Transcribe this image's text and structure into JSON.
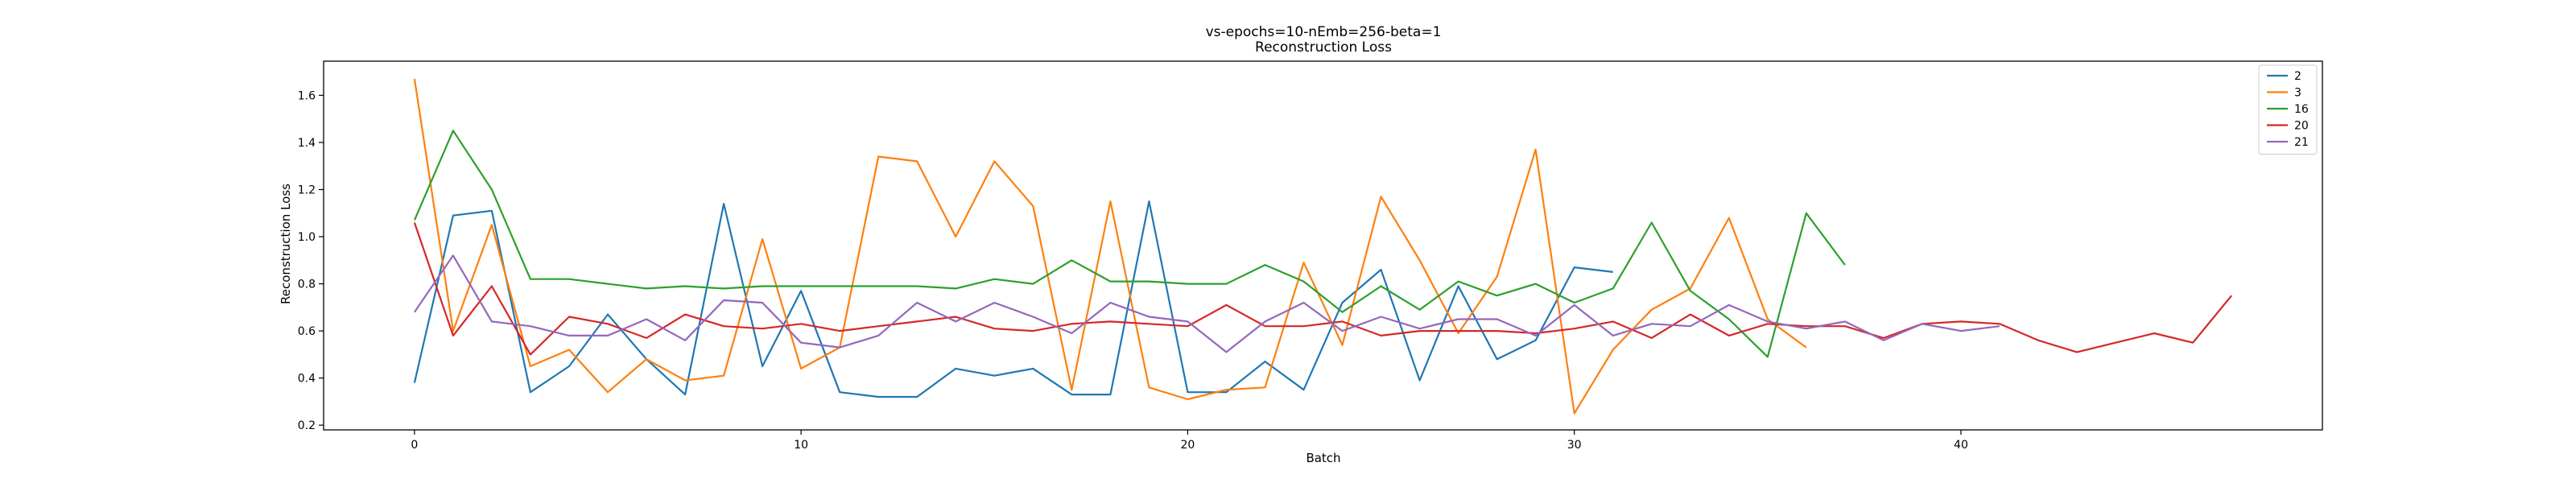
{
  "chart_data": {
    "type": "line",
    "title": "vs-epochs=10-nEmb=256-beta=1",
    "subtitle": "Reconstruction Loss",
    "xlabel": "Batch",
    "ylabel": "Reconstruction Loss",
    "xlim": [
      -2.35,
      49.35
    ],
    "ylim": [
      0.18,
      1.745
    ],
    "xticks": [
      0,
      10,
      20,
      30,
      40
    ],
    "yticks": [
      0.2,
      0.4,
      0.6,
      0.8,
      1.0,
      1.2,
      1.4,
      1.6
    ],
    "grid": false,
    "legend_position": "top-right",
    "series": [
      {
        "name": "2",
        "color": "#1f77b4",
        "values": [
          0.38,
          1.09,
          1.11,
          0.34,
          0.45,
          0.67,
          0.48,
          0.33,
          1.14,
          0.45,
          0.77,
          0.34,
          0.32,
          0.32,
          0.44,
          0.41,
          0.44,
          0.33,
          0.33,
          1.15,
          0.34,
          0.34,
          0.47,
          0.35,
          0.72,
          0.86,
          0.39,
          0.79,
          0.48,
          0.56,
          0.87,
          0.85
        ]
      },
      {
        "name": "3",
        "color": "#ff7f0e",
        "values": [
          1.67,
          0.6,
          1.05,
          0.45,
          0.52,
          0.34,
          0.48,
          0.39,
          0.41,
          0.99,
          0.44,
          0.53,
          1.34,
          1.32,
          1.0,
          1.32,
          1.13,
          0.35,
          1.15,
          0.36,
          0.31,
          0.35,
          0.36,
          0.89,
          0.54,
          1.17,
          0.9,
          0.59,
          0.83,
          1.37,
          0.25,
          0.52,
          0.69,
          0.78,
          1.08,
          0.65,
          0.53
        ]
      },
      {
        "name": "16",
        "color": "#2ca02c",
        "values": [
          1.07,
          1.45,
          1.2,
          0.82,
          0.82,
          0.8,
          0.78,
          0.79,
          0.78,
          0.79,
          0.79,
          0.79,
          0.79,
          0.79,
          0.78,
          0.82,
          0.8,
          0.9,
          0.81,
          0.81,
          0.8,
          0.8,
          0.88,
          0.81,
          0.68,
          0.79,
          0.69,
          0.81,
          0.75,
          0.8,
          0.72,
          0.78,
          1.06,
          0.77,
          0.65,
          0.49,
          1.1,
          0.88
        ]
      },
      {
        "name": "20",
        "color": "#d62728",
        "values": [
          1.06,
          0.58,
          0.79,
          0.5,
          0.66,
          0.63,
          0.57,
          0.67,
          0.62,
          0.61,
          0.63,
          0.6,
          0.62,
          0.64,
          0.66,
          0.61,
          0.6,
          0.63,
          0.64,
          0.63,
          0.62,
          0.71,
          0.62,
          0.62,
          0.64,
          0.58,
          0.6,
          0.6,
          0.6,
          0.59,
          0.61,
          0.64,
          0.57,
          0.67,
          0.58,
          0.63,
          0.62,
          0.62,
          0.57,
          0.63,
          0.64,
          0.63,
          0.56,
          0.51,
          0.55,
          0.59,
          0.55,
          0.75
        ]
      },
      {
        "name": "21",
        "color": "#9467bd",
        "values": [
          0.68,
          0.92,
          0.64,
          0.62,
          0.58,
          0.58,
          0.65,
          0.56,
          0.73,
          0.72,
          0.55,
          0.53,
          0.58,
          0.72,
          0.64,
          0.72,
          0.66,
          0.59,
          0.72,
          0.66,
          0.64,
          0.51,
          0.64,
          0.72,
          0.6,
          0.66,
          0.61,
          0.65,
          0.65,
          0.58,
          0.71,
          0.58,
          0.63,
          0.62,
          0.71,
          0.64,
          0.61,
          0.64,
          0.56,
          0.63,
          0.6,
          0.62
        ]
      }
    ]
  }
}
